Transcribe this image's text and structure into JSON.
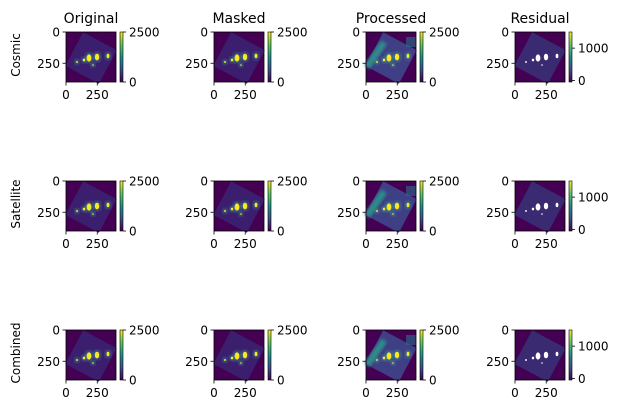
{
  "chart_data": {
    "type": "heatmap",
    "grid": "off",
    "column_titles": [
      "Original",
      "Masked",
      "Processed",
      "Residual"
    ],
    "row_labels": [
      "Cosmic",
      "Satellite",
      "Combined"
    ],
    "colormap": "viridis",
    "colors": {
      "background": "#440154",
      "frame": "#3b1f6e",
      "stars": "#fde725",
      "stripe": "#2a9a8a"
    },
    "x_ticks": [
      0,
      250
    ],
    "y_ticks": [
      0,
      250
    ],
    "image_extent": [
      0,
      400
    ],
    "panels": [
      {
        "row": "Cosmic",
        "column": "Original",
        "colorbar_range": [
          0,
          2500
        ],
        "colorbar_ticks": [
          "2500",
          "0"
        ]
      },
      {
        "row": "Cosmic",
        "column": "Masked",
        "colorbar_range": [
          0,
          2500
        ],
        "colorbar_ticks": [
          "2500",
          "0"
        ]
      },
      {
        "row": "Cosmic",
        "column": "Processed",
        "colorbar_range": [
          0,
          2500
        ],
        "colorbar_ticks": [
          "2500",
          "0"
        ]
      },
      {
        "row": "Cosmic",
        "column": "Residual",
        "colorbar_range": [
          -50,
          1500
        ],
        "colorbar_ticks": [
          "1000",
          "0"
        ]
      },
      {
        "row": "Satellite",
        "column": "Original",
        "colorbar_range": [
          0,
          2500
        ],
        "colorbar_ticks": [
          "2500",
          "0"
        ]
      },
      {
        "row": "Satellite",
        "column": "Masked",
        "colorbar_range": [
          0,
          2500
        ],
        "colorbar_ticks": [
          "2500",
          "0"
        ]
      },
      {
        "row": "Satellite",
        "column": "Processed",
        "colorbar_range": [
          0,
          2500
        ],
        "colorbar_ticks": [
          "2500",
          "0"
        ]
      },
      {
        "row": "Satellite",
        "column": "Residual",
        "colorbar_range": [
          -50,
          1500
        ],
        "colorbar_ticks": [
          "1000",
          "0"
        ]
      },
      {
        "row": "Combined",
        "column": "Original",
        "colorbar_range": [
          0,
          2500
        ],
        "colorbar_ticks": [
          "2500",
          "0"
        ]
      },
      {
        "row": "Combined",
        "column": "Masked",
        "colorbar_range": [
          0,
          2500
        ],
        "colorbar_ticks": [
          "2500",
          "0"
        ]
      },
      {
        "row": "Combined",
        "column": "Processed",
        "colorbar_range": [
          0,
          2500
        ],
        "colorbar_ticks": [
          "2500",
          "0"
        ]
      },
      {
        "row": "Combined",
        "column": "Residual",
        "colorbar_range": [
          -50,
          1500
        ],
        "colorbar_ticks": [
          "1000",
          "0"
        ]
      }
    ]
  }
}
